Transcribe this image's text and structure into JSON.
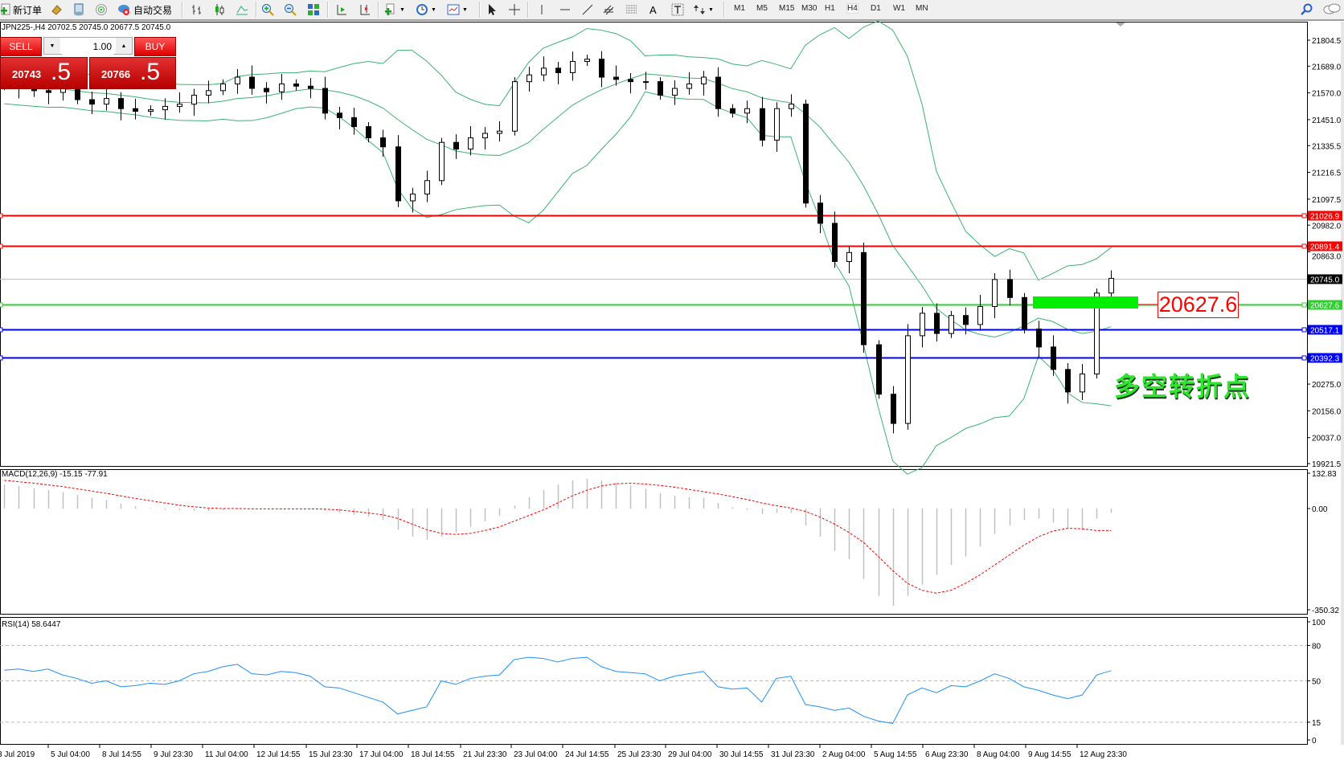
{
  "toolbar": {
    "new_order": "新订单",
    "auto_trading": "自动交易",
    "timeframes": [
      "M1",
      "M5",
      "M15",
      "M30",
      "H1",
      "H4",
      "D1",
      "W1",
      "MN"
    ],
    "active_timeframe": "H4",
    "icons": [
      "new-order-icon",
      "history-icon",
      "navigator-icon",
      "signal-icon",
      "auto-trading-icon",
      "bar-chart-icon",
      "candlestick-icon",
      "line-chart-icon",
      "zoom-in-icon",
      "zoom-out-icon",
      "tile-windows-icon",
      "autoscroll-icon",
      "chart-shift-icon",
      "indicators-icon",
      "periods-icon",
      "templates-icon",
      "cursor-icon",
      "crosshair-icon",
      "vertical-line-icon",
      "horizontal-line-icon",
      "trendline-icon",
      "equidistant-channel-icon",
      "fibonacci-icon",
      "text-icon",
      "text-label-icon",
      "arrows-icon",
      "search-icon",
      "chat-icon"
    ]
  },
  "chart_title": "JPN225-,H4  20702.5 20745.0 20677.5 20745.0",
  "trade_panel": {
    "sell_label": "SELL",
    "buy_label": "BUY",
    "lots": "1.00",
    "sell_price_main": "20743",
    "sell_price_frac": ".5",
    "buy_price_main": "20766",
    "buy_price_frac": ".5"
  },
  "annotations": {
    "price_tag": "20627.6",
    "text": "多空转折点",
    "highlight_color": "#00ee00"
  },
  "chart_data": [
    {
      "type": "candlestick",
      "symbol": "JPN225-",
      "timeframe": "H4",
      "indicator": "Bollinger Bands",
      "band_color": "#3cb371",
      "ylim": [
        19921.5,
        21804.5
      ],
      "y_ticks": [
        "21804.5",
        "21689.0",
        "21570.0",
        "21451.0",
        "21335.5",
        "21216.5",
        "21097.5",
        "20982.0",
        "20863.0",
        "20275.0",
        "20156.0",
        "20037.0",
        "19921.5"
      ],
      "x_ticks": [
        "3 Jul 2019",
        "5 Jul 04:00",
        "8 Jul 14:55",
        "9 Jul 23:30",
        "11 Jul 04:00",
        "12 Jul 14:55",
        "15 Jul 23:30",
        "17 Jul 04:00",
        "18 Jul 14:55",
        "21 Jul 23:30",
        "23 Jul 04:00",
        "24 Jul 14:55",
        "25 Jul 23:30",
        "29 Jul 04:00",
        "30 Jul 14:55",
        "31 Jul 23:30",
        "2 Aug 04:00",
        "5 Aug 14:55",
        "6 Aug 23:30",
        "8 Aug 04:00",
        "9 Aug 14:55",
        "12 Aug 23:30"
      ],
      "first_open": 21615,
      "close": [
        21602,
        21590,
        21580,
        21572,
        21590,
        21540,
        21520,
        21545,
        21500,
        21488,
        21495,
        21510,
        21520,
        21560,
        21580,
        21610,
        21640,
        21590,
        21575,
        21610,
        21600,
        21590,
        21480,
        21460,
        21420,
        21370,
        21330,
        21090,
        21120,
        21180,
        21350,
        21320,
        21370,
        21390,
        21400,
        21620,
        21650,
        21680,
        21660,
        21710,
        21720,
        21640,
        21630,
        21620,
        21620,
        21560,
        21590,
        21610,
        21640,
        21500,
        21480,
        21500,
        21360,
        21500,
        21520,
        21080,
        20990,
        20820,
        20860,
        20450,
        20230,
        20100,
        20490,
        20590,
        20500,
        20580,
        20540,
        20620,
        20740,
        20660,
        20520,
        20440,
        20340,
        20240,
        20320,
        20680,
        20745
      ],
      "horizontal_lines": [
        {
          "price": "21026.9",
          "color": "#ff0000"
        },
        {
          "price": "20891.4",
          "color": "#ff0000"
        },
        {
          "price": "20745.0",
          "color": "#c0c0c0",
          "label_bg": "#000000"
        },
        {
          "price": "20627.6",
          "color": "#32cd32"
        },
        {
          "price": "20517.1",
          "color": "#0000ff"
        },
        {
          "price": "20392.3",
          "color": "#0000ff"
        }
      ]
    },
    {
      "type": "bar+line",
      "label": "MACD(12,26,9) -15.15 -77.91",
      "y_ticks": [
        "132.83",
        "0.00",
        "-350.32"
      ],
      "macd_color": "#c0c0c0",
      "signal_color": "#ff0000",
      "macd": [
        85,
        80,
        72,
        65,
        58,
        48,
        38,
        30,
        18,
        8,
        2,
        -4,
        -6,
        -8,
        -8,
        -6,
        -4,
        -2,
        0,
        0,
        0,
        -2,
        -8,
        -15,
        -22,
        -30,
        -40,
        -75,
        -100,
        -110,
        -100,
        -85,
        -65,
        -45,
        -25,
        10,
        40,
        65,
        85,
        100,
        105,
        100,
        92,
        82,
        70,
        55,
        45,
        40,
        38,
        20,
        5,
        -5,
        -20,
        -15,
        -15,
        -60,
        -100,
        -150,
        -180,
        -250,
        -310,
        -345,
        -310,
        -270,
        -235,
        -200,
        -170,
        -135,
        -90,
        -60,
        -40,
        -35,
        -50,
        -70,
        -75,
        -35,
        -15.15
      ],
      "signal": [
        100,
        95,
        90,
        84,
        78,
        70,
        62,
        54,
        45,
        36,
        28,
        20,
        12,
        6,
        2,
        0,
        0,
        -1,
        -1,
        -1,
        -1,
        -1,
        -2,
        -5,
        -10,
        -16,
        -22,
        -35,
        -55,
        -75,
        -88,
        -92,
        -88,
        -78,
        -65,
        -45,
        -25,
        -5,
        20,
        45,
        65,
        80,
        88,
        90,
        87,
        82,
        76,
        68,
        60,
        52,
        42,
        32,
        20,
        10,
        2,
        -10,
        -30,
        -55,
        -85,
        -120,
        -170,
        -220,
        -265,
        -290,
        -300,
        -290,
        -265,
        -235,
        -200,
        -165,
        -130,
        -100,
        -80,
        -70,
        -72,
        -78,
        -77.91
      ]
    },
    {
      "type": "line",
      "label": "RSI(14) 58.6447",
      "ylim": [
        0,
        100
      ],
      "y_ticks": [
        "100",
        "80",
        "50",
        "15",
        "0"
      ],
      "levels": [
        80,
        50,
        15
      ],
      "color": "#1e90ff",
      "values": [
        59,
        60,
        58,
        60,
        55,
        52,
        48,
        50,
        45,
        46,
        48,
        47,
        50,
        56,
        58,
        62,
        64,
        56,
        55,
        58,
        57,
        54,
        45,
        44,
        40,
        36,
        32,
        22,
        25,
        28,
        50,
        47,
        52,
        54,
        55,
        68,
        70,
        69,
        66,
        69,
        70,
        62,
        58,
        57,
        56,
        50,
        54,
        56,
        58,
        45,
        43,
        44,
        32,
        52,
        54,
        30,
        28,
        25,
        27,
        20,
        16,
        14,
        38,
        44,
        40,
        46,
        45,
        50,
        56,
        52,
        45,
        42,
        38,
        35,
        38,
        55,
        58.6447
      ]
    }
  ]
}
